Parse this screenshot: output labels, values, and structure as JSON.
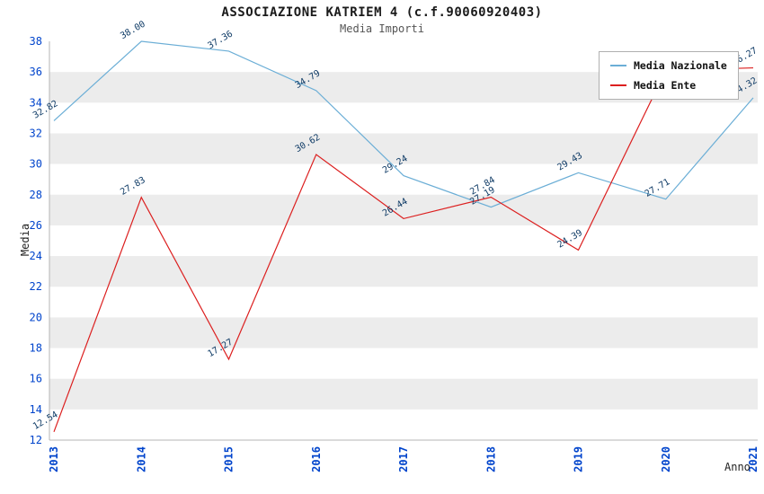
{
  "title": "ASSOCIAZIONE KATRIEM 4 (c.f.90060920403)",
  "subtitle": "Media Importi",
  "colors": {
    "band": "#ececec",
    "tick": "#0044cc",
    "point_label": "#0f3b66",
    "axis": "#b5b5b5",
    "legend_border": "#b0b0b0",
    "nazionale": "#6baed6",
    "ente": "#dc1f1f"
  },
  "chart_data": {
    "type": "line",
    "title": "ASSOCIAZIONE KATRIEM 4 (c.f.90060920403)",
    "subtitle": "Media Importi",
    "xlabel": "Anno",
    "ylabel": "Media",
    "x": [
      "2013",
      "2014",
      "2015",
      "2016",
      "2017",
      "2018",
      "2019",
      "2020",
      "2021"
    ],
    "ylim": [
      12,
      38
    ],
    "ytick_step": 2,
    "grid": "alternating-horizontal-bands",
    "legend_position": "top-right",
    "series": [
      {
        "name": "Media Nazionale",
        "color": "#6baed6",
        "values": [
          32.82,
          38.0,
          37.36,
          34.79,
          29.24,
          27.19,
          29.43,
          27.71,
          34.32
        ],
        "labels": [
          "32.82",
          "38.00",
          "37.36",
          "34.79",
          "29.24",
          "27.19",
          "29.43",
          "27.71",
          "34.32"
        ]
      },
      {
        "name": "Media Ente",
        "color": "#dc1f1f",
        "values": [
          12.54,
          27.83,
          17.27,
          30.62,
          26.44,
          27.84,
          24.39,
          36.1,
          36.27
        ],
        "labels": [
          "12.54",
          "27.83",
          "17.27",
          "30.62",
          "26.44",
          "27.84",
          "24.39",
          "",
          "36.27"
        ],
        "note": "2020 point estimated from plot; its label is hidden behind the legend"
      }
    ]
  }
}
